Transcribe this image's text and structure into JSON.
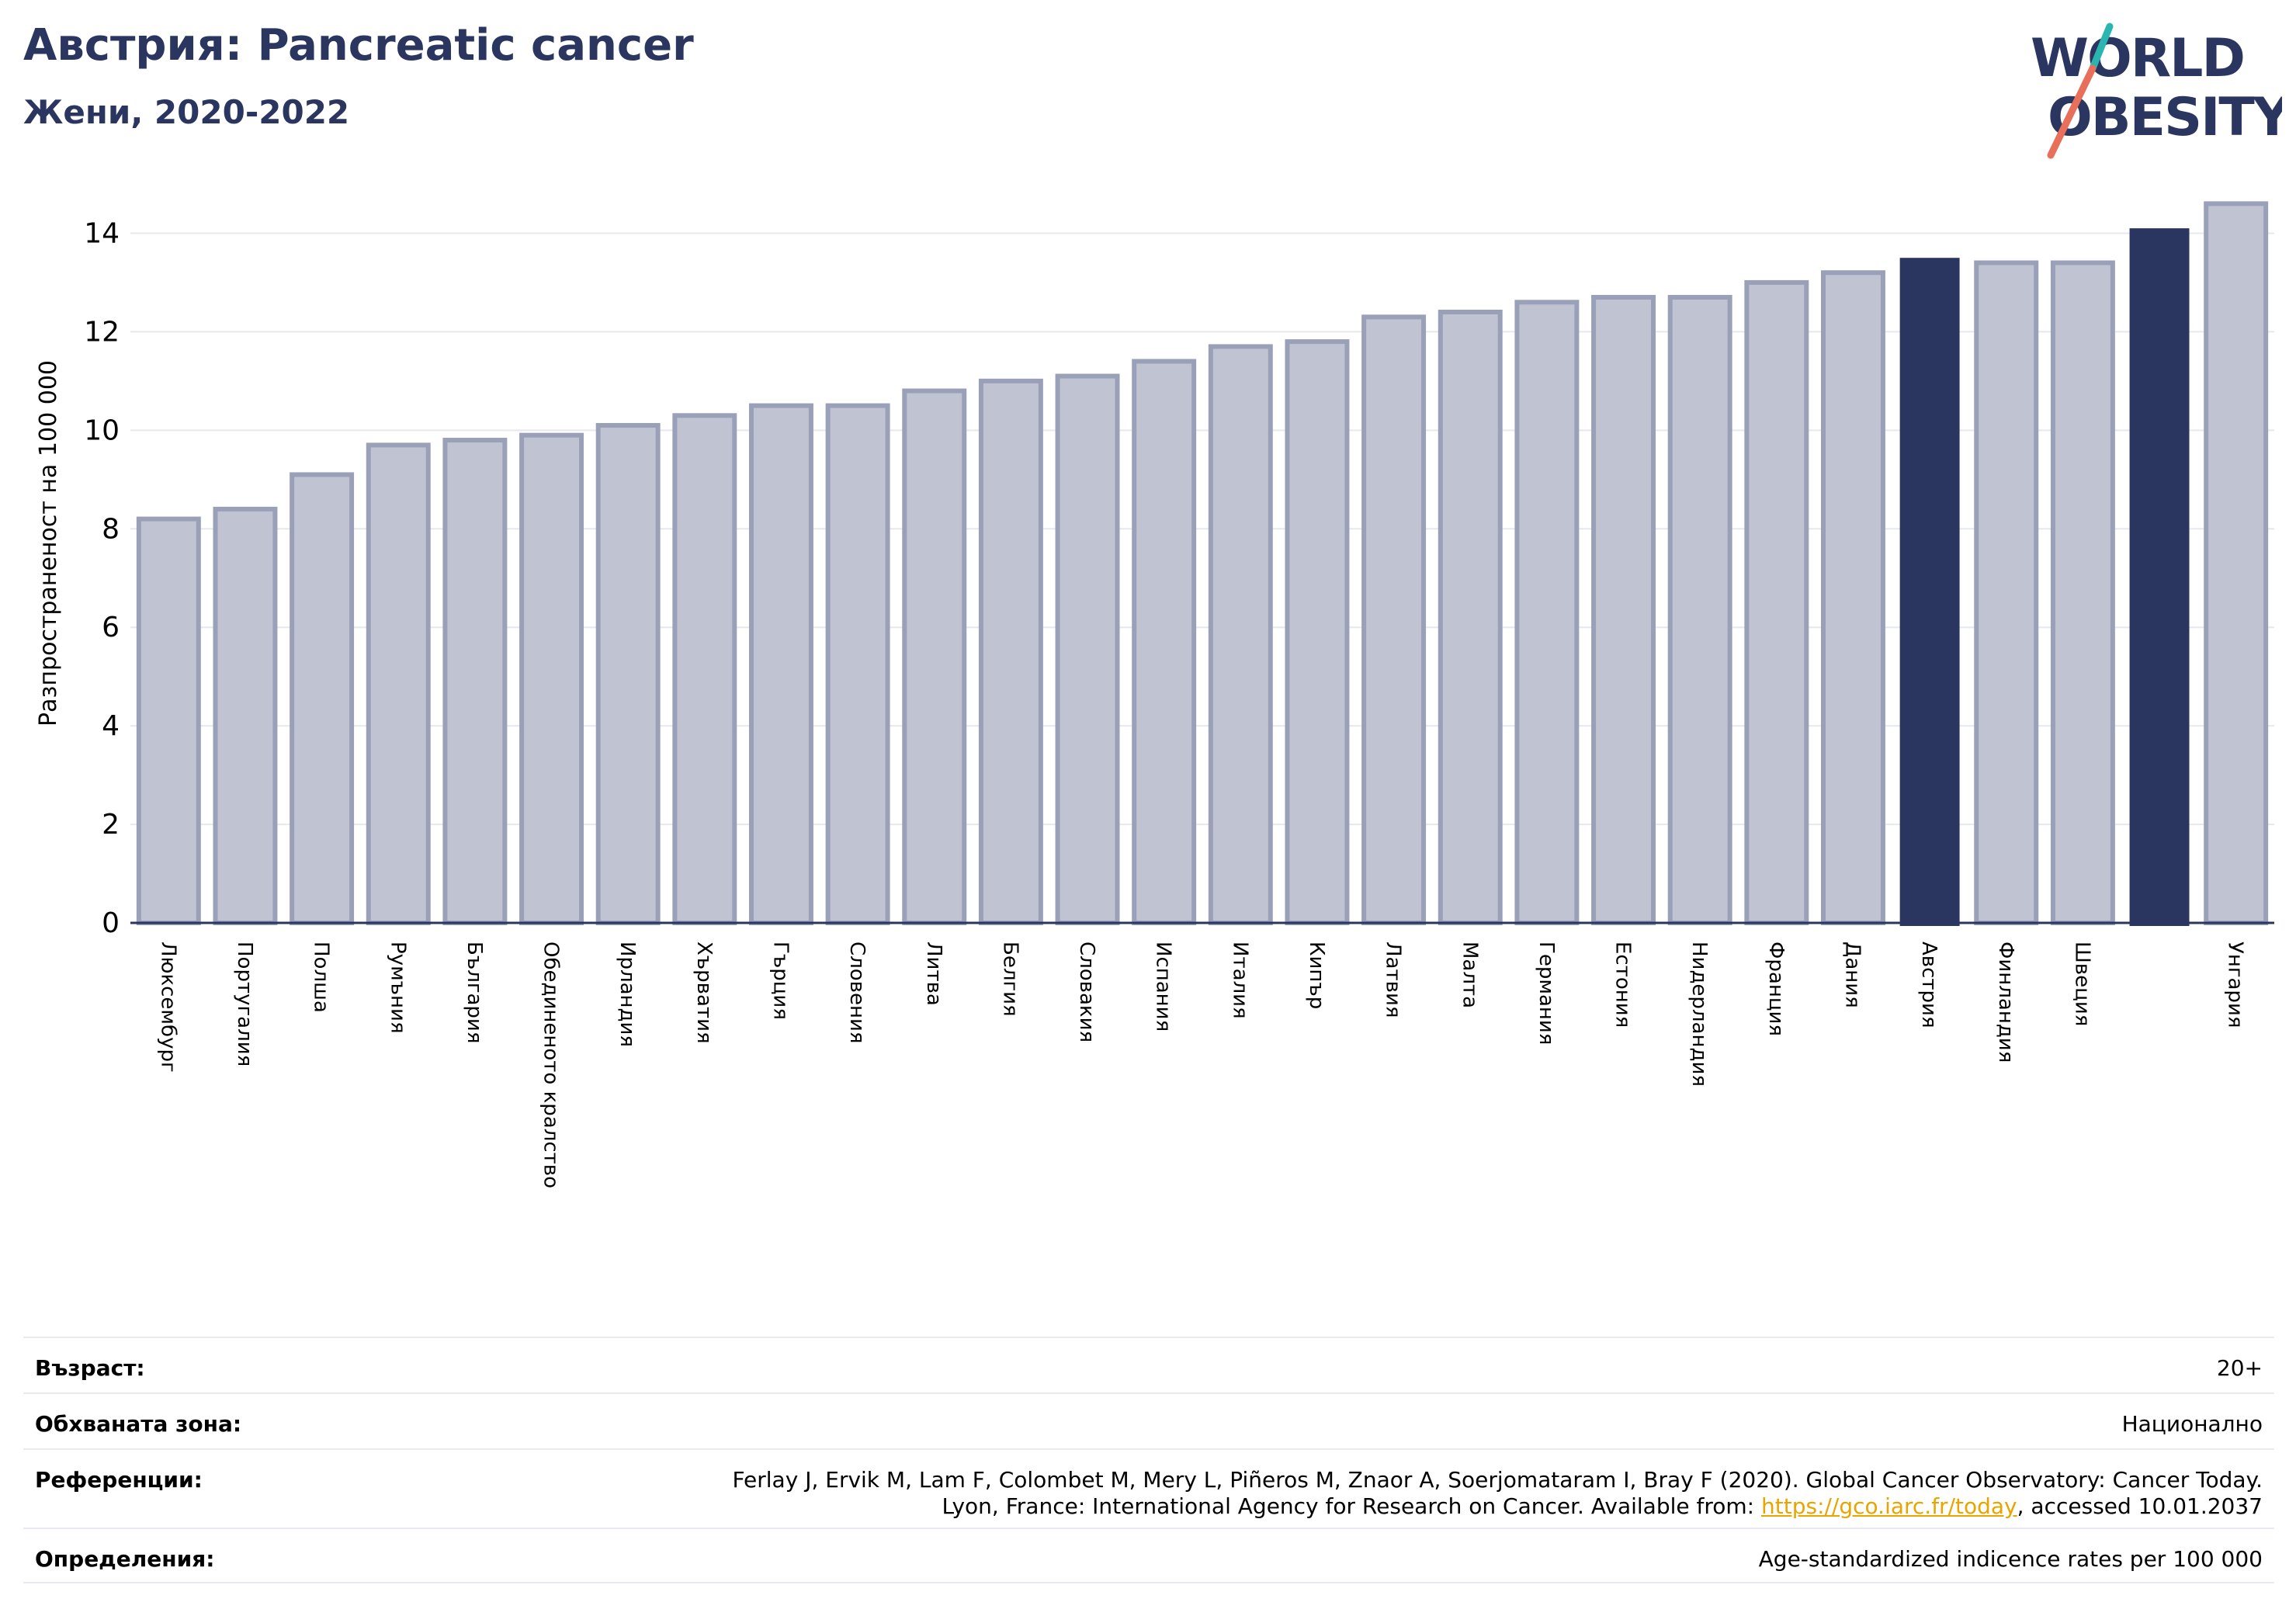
{
  "header": {
    "title": "Австрия: Pancreatic cancer",
    "subtitle": "Жени, 2020-2022"
  },
  "logo": {
    "line1": "WORLD",
    "line2": "OBESITY"
  },
  "colors": {
    "title": "#2a3560",
    "bar_default_fill": "#c0c3d1",
    "bar_default_stroke": "#9aa0b8",
    "bar_highlight": "#2a3560",
    "logo_slash_top": "#2bb5b0",
    "logo_slash_bottom": "#e8705a",
    "link": "#e8a500"
  },
  "chart_data": {
    "type": "bar",
    "ylabel": "Разпространеност  на 100 000",
    "ylim": [
      0,
      15
    ],
    "yticks": [
      0,
      2,
      4,
      6,
      8,
      10,
      12,
      14
    ],
    "grid": true,
    "categories": [
      "Люксембург",
      "Португалия",
      "Полша",
      "Румъния",
      "България",
      "Обединеното кралство",
      "Ирландия",
      "Хърватия",
      "Гърция",
      "Словения",
      "Литва",
      "Белгия",
      "Словакия",
      "Испания",
      "Италия",
      "Кипър",
      "Латвия",
      "Малта",
      "Германия",
      "Естония",
      "Нидерландия",
      "Франция",
      "Дания",
      "Австрия",
      "Финландия",
      "Швеция",
      "",
      "Унгария"
    ],
    "values": [
      8.2,
      8.4,
      9.1,
      9.7,
      9.8,
      9.9,
      10.1,
      10.3,
      10.5,
      10.5,
      10.8,
      11.0,
      11.1,
      11.4,
      11.7,
      11.8,
      12.3,
      12.4,
      12.6,
      12.7,
      12.7,
      13.0,
      13.2,
      13.5,
      13.4,
      13.4,
      14.1,
      14.6
    ],
    "highlighted": [
      "Австрия",
      ""
    ]
  },
  "info": {
    "age_label": "Възраст:",
    "age_value": "20+",
    "coverage_label": "Обхваната зона:",
    "coverage_value": "Национално",
    "references_label": "Референции:",
    "references_line1": "Ferlay J, Ervik M, Lam F, Colombet M, Mery L, Piñeros M, Znaor A, Soerjomataram I, Bray F (2020). Global Cancer Observatory: Cancer Today.",
    "references_line2_pre": "Lyon, France: International Agency for Research on Cancer. Available from: ",
    "references_link": "https://gco.iarc.fr/today",
    "references_line2_post": ", accessed 10.01.2037",
    "definitions_label": "Определения:",
    "definitions_value": "Age-standardized indicence rates per 100 000"
  }
}
